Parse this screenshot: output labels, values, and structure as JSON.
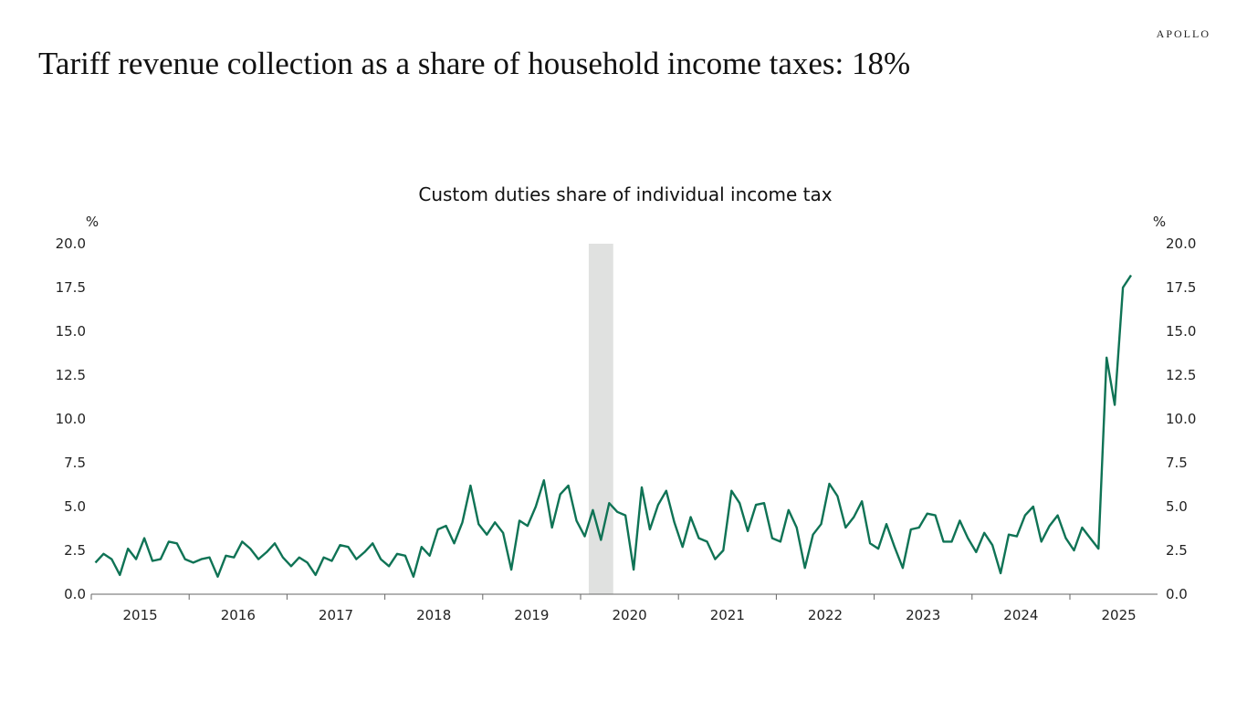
{
  "brand": "APOLLO",
  "headline": "Tariff revenue collection as a share of household income taxes: 18%",
  "chart_data": {
    "type": "line",
    "title": "Custom duties share of individual income tax",
    "ylabel_left": "%",
    "ylabel_right": "%",
    "ylim": [
      0,
      20
    ],
    "yticks": [
      "0.0",
      "2.5",
      "5.0",
      "7.5",
      "10.0",
      "12.5",
      "15.0",
      "17.5",
      "20.0"
    ],
    "xticks": [
      "2015",
      "2016",
      "2017",
      "2018",
      "2019",
      "2020",
      "2021",
      "2022",
      "2023",
      "2024",
      "2025"
    ],
    "x_start": "2015-01",
    "frequency": "monthly",
    "grid": false,
    "recession_shading": {
      "start": "2020-02",
      "end": "2020-04",
      "color": "#e0e1e0"
    },
    "series_color": "#0f7355",
    "values": [
      1.8,
      2.3,
      2.0,
      1.1,
      2.6,
      2.0,
      3.2,
      1.9,
      2.0,
      3.0,
      2.9,
      2.0,
      1.8,
      2.0,
      2.1,
      1.0,
      2.2,
      2.1,
      3.0,
      2.6,
      2.0,
      2.4,
      2.9,
      2.1,
      1.6,
      2.1,
      1.8,
      1.1,
      2.1,
      1.9,
      2.8,
      2.7,
      2.0,
      2.4,
      2.9,
      2.0,
      1.6,
      2.3,
      2.2,
      1.0,
      2.7,
      2.2,
      3.7,
      3.9,
      2.9,
      4.1,
      6.2,
      4.0,
      3.4,
      4.1,
      3.5,
      1.4,
      4.2,
      3.9,
      5.0,
      6.5,
      3.8,
      5.7,
      6.2,
      4.2,
      3.3,
      4.8,
      3.1,
      5.2,
      4.7,
      4.5,
      1.4,
      6.1,
      3.7,
      5.1,
      5.9,
      4.1,
      2.7,
      4.4,
      3.2,
      3.0,
      2.0,
      2.5,
      5.9,
      5.2,
      3.6,
      5.1,
      5.2,
      3.2,
      3.0,
      4.8,
      3.8,
      1.5,
      3.4,
      4.0,
      6.3,
      5.6,
      3.8,
      4.4,
      5.3,
      2.9,
      2.6,
      4.0,
      2.7,
      1.5,
      3.7,
      3.8,
      4.6,
      4.5,
      3.0,
      3.0,
      4.2,
      3.2,
      2.4,
      3.5,
      2.8,
      1.2,
      3.4,
      3.3,
      4.5,
      5.0,
      3.0,
      3.9,
      4.5,
      3.2,
      2.5,
      3.8,
      3.2,
      2.6,
      13.5,
      10.8,
      17.5,
      18.2
    ]
  }
}
